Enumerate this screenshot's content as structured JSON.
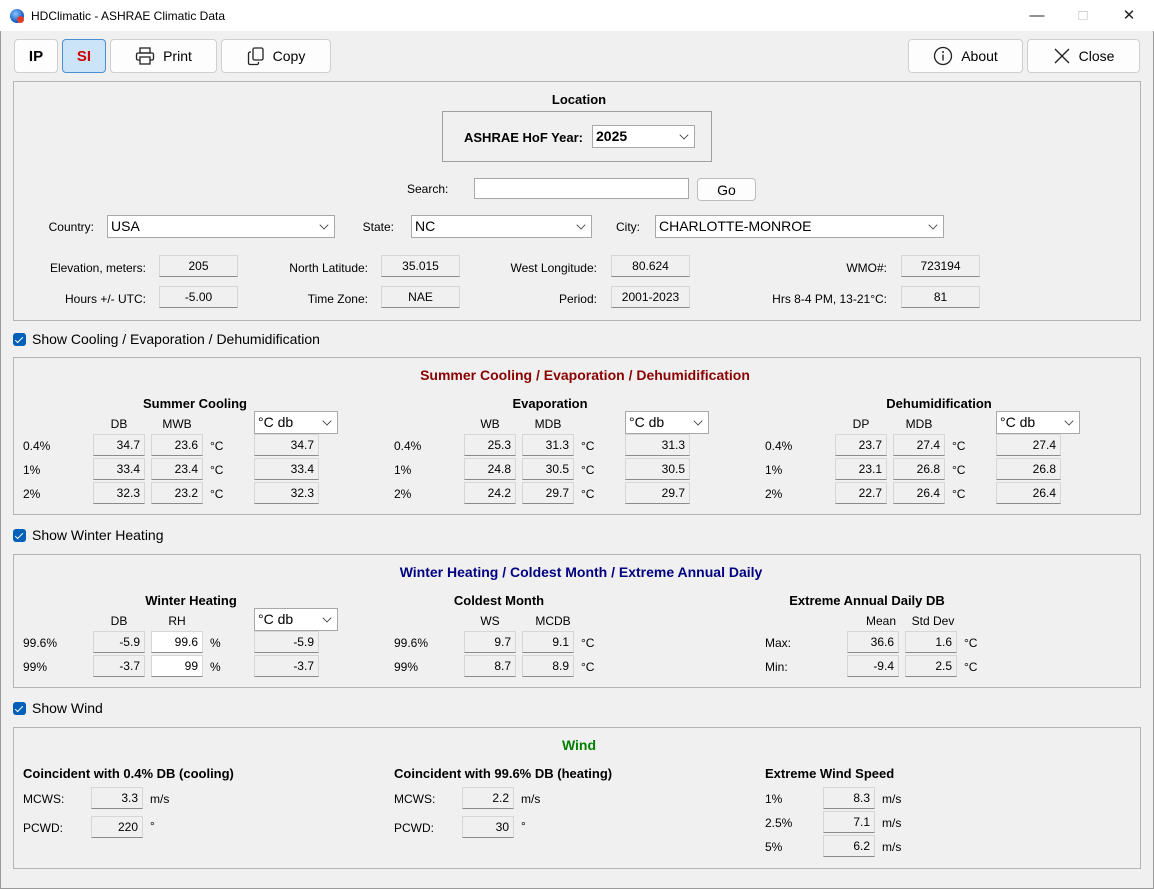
{
  "window": {
    "title": "HDClimatic - ASHRAE Climatic Data",
    "minimize": "—",
    "maximize": "□",
    "close": "✕"
  },
  "toolbar": {
    "ip": "IP",
    "si": "SI",
    "print": "Print",
    "copy": "Copy",
    "about": "About",
    "close": "Close",
    "si_color": "#d00000",
    "selected_bg": "#cce4f7"
  },
  "location": {
    "title": "Location",
    "hof_label": "ASHRAE HoF Year:",
    "hof_value": "2025",
    "search_label": "Search:",
    "search_value": "",
    "go": "Go",
    "country_label": "Country:",
    "country": "USA",
    "state_label": "State:",
    "state": "NC",
    "city_label": "City:",
    "city": "CHARLOTTE-MONROE",
    "elevation_label": "Elevation, meters:",
    "elevation": "205",
    "lat_label": "North Latitude:",
    "lat": "35.015",
    "lon_label": "West Longitude:",
    "lon": "80.624",
    "wmo_label": "WMO#:",
    "wmo": "723194",
    "utc_label": "Hours +/- UTC:",
    "utc": "-5.00",
    "tz_label": "Time Zone:",
    "tz": "NAE",
    "period_label": "Period:",
    "period": "2001-2023",
    "hrs_label": "Hrs 8-4 PM, 13-21°C:",
    "hrs": "81"
  },
  "cooling": {
    "show_label": "Show Cooling / Evaporation / Dehumidification",
    "title": "Summer Cooling / Evaporation / Dehumidification",
    "title_color": "#8b0000",
    "unit": "°C",
    "summer": {
      "title": "Summer Cooling",
      "col1": "DB",
      "col2": "MWB",
      "select": "°C db",
      "rows": [
        {
          "label": "0.4%",
          "v1": "34.7",
          "v2": "23.6",
          "unit": "°C",
          "sel": "34.7"
        },
        {
          "label": "1%",
          "v1": "33.4",
          "v2": "23.4",
          "unit": "°C",
          "sel": "33.4"
        },
        {
          "label": "2%",
          "v1": "32.3",
          "v2": "23.2",
          "unit": "°C",
          "sel": "32.3"
        }
      ]
    },
    "evap": {
      "title": "Evaporation",
      "col1": "WB",
      "col2": "MDB",
      "select": "°C db",
      "rows": [
        {
          "label": "0.4%",
          "v1": "25.3",
          "v2": "31.3",
          "unit": "°C",
          "sel": "31.3"
        },
        {
          "label": "1%",
          "v1": "24.8",
          "v2": "30.5",
          "unit": "°C",
          "sel": "30.5"
        },
        {
          "label": "2%",
          "v1": "24.2",
          "v2": "29.7",
          "unit": "°C",
          "sel": "29.7"
        }
      ]
    },
    "dehum": {
      "title": "Dehumidification",
      "col1": "DP",
      "col2": "MDB",
      "select": "°C db",
      "rows": [
        {
          "label": "0.4%",
          "v1": "23.7",
          "v2": "27.4",
          "unit": "°C",
          "sel": "27.4"
        },
        {
          "label": "1%",
          "v1": "23.1",
          "v2": "26.8",
          "unit": "°C",
          "sel": "26.8"
        },
        {
          "label": "2%",
          "v1": "22.7",
          "v2": "26.4",
          "unit": "°C",
          "sel": "26.4"
        }
      ]
    }
  },
  "winter": {
    "show_label": "Show Winter Heating",
    "title": "Winter Heating / Coldest Month / Extreme Annual Daily",
    "title_color": "#000080",
    "heating": {
      "title": "Winter Heating",
      "col1": "DB",
      "col2": "RH",
      "select": "°C db",
      "rows": [
        {
          "label": "99.6%",
          "v1": "-5.9",
          "v2": "99.6",
          "unit": "%",
          "sel": "-5.9"
        },
        {
          "label": "99%",
          "v1": "-3.7",
          "v2": "99",
          "unit": "%",
          "sel": "-3.7"
        }
      ]
    },
    "coldest": {
      "title": "Coldest Month",
      "col1": "WS",
      "col2": "MCDB",
      "rows": [
        {
          "label": "99.6%",
          "v1": "9.7",
          "v2": "9.1",
          "unit": "°C"
        },
        {
          "label": "99%",
          "v1": "8.7",
          "v2": "8.9",
          "unit": "°C"
        }
      ]
    },
    "extreme": {
      "title": "Extreme Annual Daily DB",
      "col1": "Mean",
      "col2": "Std Dev",
      "rows": [
        {
          "label": "Max:",
          "v1": "36.6",
          "v2": "1.6",
          "unit": "°C"
        },
        {
          "label": "Min:",
          "v1": "-9.4",
          "v2": "2.5",
          "unit": "°C"
        }
      ]
    }
  },
  "wind": {
    "show_label": "Show Wind",
    "title": "Wind",
    "title_color": "#008000",
    "cooling": {
      "title": "Coincident with 0.4% DB (cooling)",
      "mcws_label": "MCWS:",
      "mcws": "3.3",
      "mcws_unit": "m/s",
      "pcwd_label": "PCWD:",
      "pcwd": "220",
      "pcwd_unit": "°"
    },
    "heating": {
      "title": "Coincident with 99.6% DB (heating)",
      "mcws_label": "MCWS:",
      "mcws": "2.2",
      "mcws_unit": "m/s",
      "pcwd_label": "PCWD:",
      "pcwd": "30",
      "pcwd_unit": "°"
    },
    "extreme": {
      "title": "Extreme Wind Speed",
      "rows": [
        {
          "label": "1%",
          "value": "8.3",
          "unit": "m/s"
        },
        {
          "label": "2.5%",
          "value": "7.1",
          "unit": "m/s"
        },
        {
          "label": "5%",
          "value": "6.2",
          "unit": "m/s"
        }
      ]
    }
  }
}
